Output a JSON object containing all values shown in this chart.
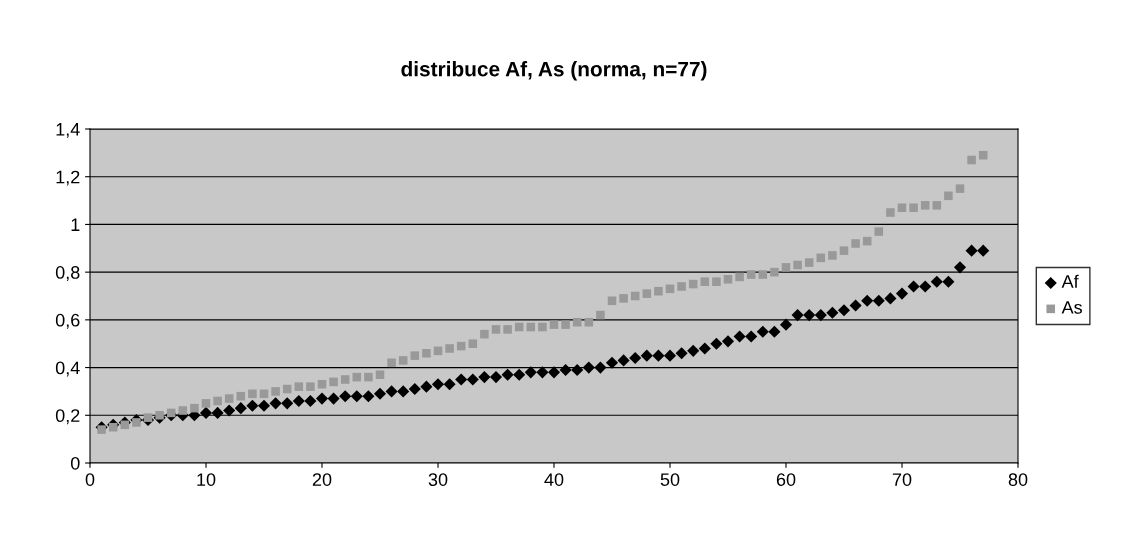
{
  "chart_data": {
    "type": "scatter",
    "title": "distribuce Af, As (norma, n=77)",
    "x": [
      1,
      2,
      3,
      4,
      5,
      6,
      7,
      8,
      9,
      10,
      11,
      12,
      13,
      14,
      15,
      16,
      17,
      18,
      19,
      20,
      21,
      22,
      23,
      24,
      25,
      26,
      27,
      28,
      29,
      30,
      31,
      32,
      33,
      34,
      35,
      36,
      37,
      38,
      39,
      40,
      41,
      42,
      43,
      44,
      45,
      46,
      47,
      48,
      49,
      50,
      51,
      52,
      53,
      54,
      55,
      56,
      57,
      58,
      59,
      60,
      61,
      62,
      63,
      64,
      65,
      66,
      67,
      68,
      69,
      70,
      71,
      72,
      73,
      74,
      75,
      76,
      77
    ],
    "series": [
      {
        "name": "Af",
        "color": "#000000",
        "marker": "diamond",
        "values": [
          0.15,
          0.16,
          0.17,
          0.18,
          0.18,
          0.19,
          0.2,
          0.2,
          0.2,
          0.21,
          0.21,
          0.22,
          0.23,
          0.24,
          0.24,
          0.25,
          0.25,
          0.26,
          0.26,
          0.27,
          0.27,
          0.28,
          0.28,
          0.28,
          0.29,
          0.3,
          0.3,
          0.31,
          0.32,
          0.33,
          0.33,
          0.35,
          0.35,
          0.36,
          0.36,
          0.37,
          0.37,
          0.38,
          0.38,
          0.38,
          0.39,
          0.39,
          0.4,
          0.4,
          0.42,
          0.43,
          0.44,
          0.45,
          0.45,
          0.45,
          0.46,
          0.47,
          0.48,
          0.5,
          0.51,
          0.53,
          0.53,
          0.55,
          0.55,
          0.58,
          0.62,
          0.62,
          0.62,
          0.63,
          0.64,
          0.66,
          0.68,
          0.68,
          0.69,
          0.71,
          0.74,
          0.74,
          0.76,
          0.76,
          0.82,
          0.89,
          0.89
        ]
      },
      {
        "name": "As",
        "color": "#999999",
        "marker": "square",
        "values": [
          0.14,
          0.15,
          0.16,
          0.17,
          0.19,
          0.2,
          0.21,
          0.22,
          0.23,
          0.25,
          0.26,
          0.27,
          0.28,
          0.29,
          0.29,
          0.3,
          0.31,
          0.32,
          0.32,
          0.33,
          0.34,
          0.35,
          0.36,
          0.36,
          0.37,
          0.42,
          0.43,
          0.45,
          0.46,
          0.47,
          0.48,
          0.49,
          0.5,
          0.54,
          0.56,
          0.56,
          0.57,
          0.57,
          0.57,
          0.58,
          0.58,
          0.59,
          0.59,
          0.62,
          0.68,
          0.69,
          0.7,
          0.71,
          0.72,
          0.73,
          0.74,
          0.75,
          0.76,
          0.76,
          0.77,
          0.78,
          0.79,
          0.79,
          0.8,
          0.82,
          0.83,
          0.84,
          0.86,
          0.87,
          0.89,
          0.92,
          0.93,
          0.97,
          1.05,
          1.07,
          1.07,
          1.08,
          1.08,
          1.12,
          1.15,
          1.27,
          1.29
        ]
      }
    ],
    "xlim": [
      0,
      80
    ],
    "xticks": [
      0,
      10,
      20,
      30,
      40,
      50,
      60,
      70,
      80
    ],
    "ylim": [
      0,
      1.4
    ],
    "yticks": [
      0,
      {
        "value": 0.2,
        "label": "0,2"
      },
      {
        "value": 0.4,
        "label": "0,4"
      },
      {
        "value": 0.6,
        "label": "0,6"
      },
      {
        "value": 0.8,
        "label": "0,8"
      },
      1,
      {
        "value": 1.2,
        "label": "1,2"
      },
      {
        "value": 1.4,
        "label": "1,4"
      }
    ],
    "grid": "y",
    "legend": "right"
  }
}
